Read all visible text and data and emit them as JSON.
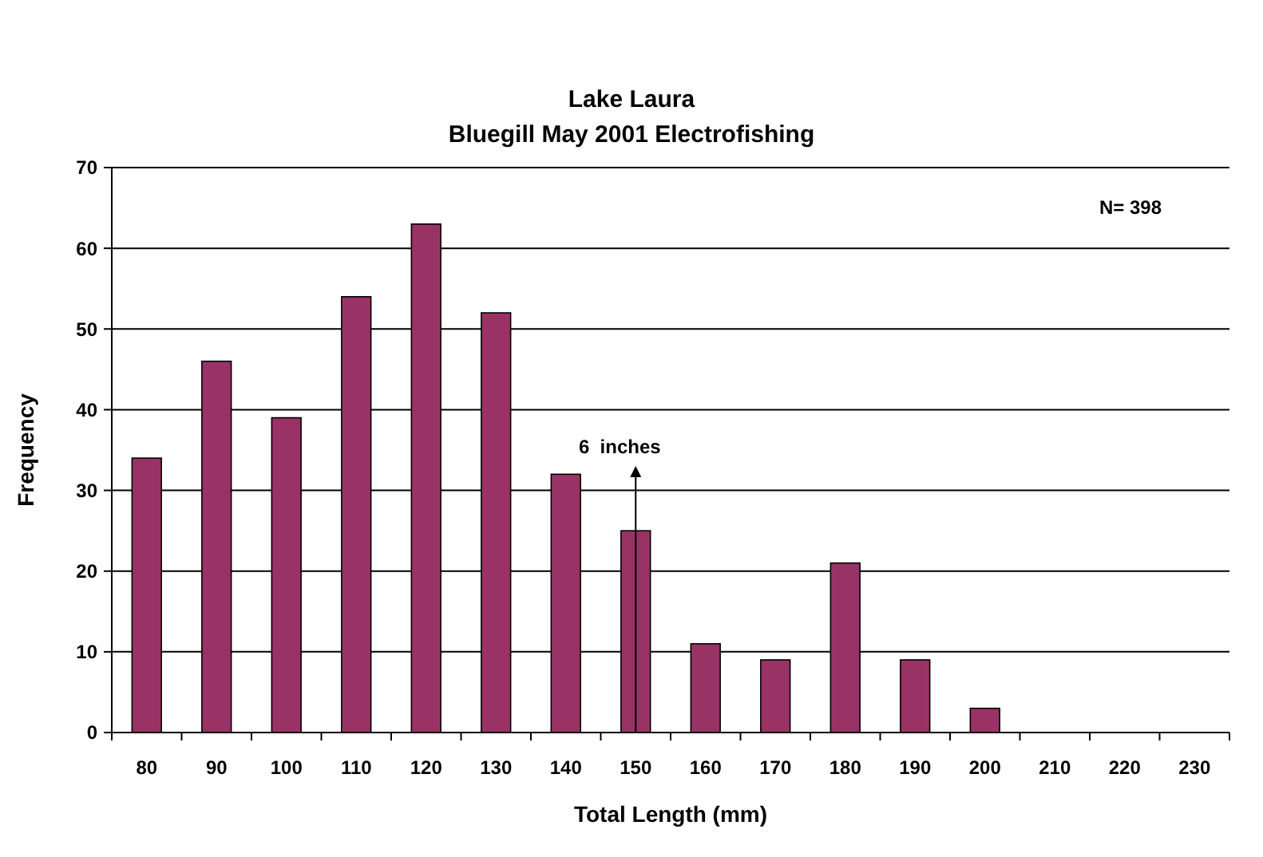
{
  "chart_data": {
    "type": "bar",
    "title": "Lake Laura",
    "subtitle": "Bluegill May 2001 Electrofishing",
    "xlabel": "Total Length (mm)",
    "ylabel": "Frequency",
    "categories": [
      "80",
      "90",
      "100",
      "110",
      "120",
      "130",
      "140",
      "150",
      "160",
      "170",
      "180",
      "190",
      "200",
      "210",
      "220",
      "230"
    ],
    "values": [
      34,
      46,
      39,
      54,
      63,
      52,
      32,
      25,
      11,
      9,
      21,
      9,
      3,
      0,
      0,
      0
    ],
    "color": "#993366",
    "ylim": [
      0,
      70
    ],
    "yticks": [
      0,
      10,
      20,
      30,
      40,
      50,
      60,
      70
    ],
    "grid": "y",
    "annotations": [
      "N= 398"
    ],
    "ref_lines": [
      {
        "axis": "x",
        "value": "150",
        "label": "6  inches",
        "color": "#000000"
      }
    ]
  }
}
